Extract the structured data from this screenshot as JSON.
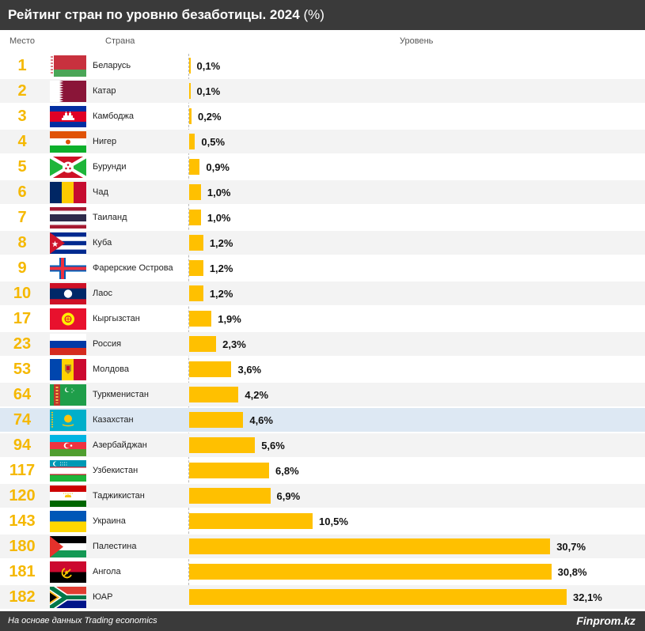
{
  "header": {
    "title": "Рейтинг стран по уровню безаботицы. 2024",
    "unit": "(%)"
  },
  "columns": {
    "place": "Место",
    "country": "Страна",
    "level": "Уровень"
  },
  "footer": {
    "source": "На основе данных Trading economics",
    "brand": "Finprom.kz"
  },
  "colors": {
    "bar": "#ffc000",
    "rank": "#f5b800",
    "header_bg": "#3a3a3a",
    "highlight_row": "#dde8f3"
  },
  "chart_data": {
    "type": "bar",
    "orientation": "horizontal",
    "title": "Рейтинг стран по уровню безаботицы. 2024 (%)",
    "xlabel": "Уровень",
    "xlim": [
      0,
      32.1
    ],
    "categories": [
      "Беларусь",
      "Катар",
      "Камбоджа",
      "Нигер",
      "Бурунди",
      "Чад",
      "Таиланд",
      "Куба",
      "Фарерские Острова",
      "Лаос",
      "Кыргызстан",
      "Россия",
      "Молдова",
      "Туркменистан",
      "Казахстан",
      "Азербайджан",
      "Узбекистан",
      "Таджикистан",
      "Украина",
      "Палестина",
      "Ангола",
      "ЮАР"
    ],
    "ranks": [
      "1",
      "2",
      "3",
      "4",
      "5",
      "6",
      "7",
      "8",
      "9",
      "10",
      "17",
      "23",
      "53",
      "64",
      "74",
      "94",
      "117",
      "120",
      "143",
      "180",
      "181",
      "182"
    ],
    "values": [
      0.1,
      0.1,
      0.2,
      0.5,
      0.9,
      1.0,
      1.0,
      1.2,
      1.2,
      1.2,
      1.9,
      2.3,
      3.6,
      4.2,
      4.6,
      5.6,
      6.8,
      6.9,
      10.5,
      30.7,
      30.8,
      32.1
    ],
    "labels": [
      "0,1%",
      "0,1%",
      "0,2%",
      "0,5%",
      "0,9%",
      "1,0%",
      "1,0%",
      "1,2%",
      "1,2%",
      "1,2%",
      "1,9%",
      "2,3%",
      "3,6%",
      "4,2%",
      "4,6%",
      "5,6%",
      "6,8%",
      "6,9%",
      "10,5%",
      "30,7%",
      "30,8%",
      "32,1%"
    ],
    "flags": [
      "belarus-flag",
      "qatar-flag",
      "cambodia-flag",
      "niger-flag",
      "burundi-flag",
      "chad-flag",
      "thailand-flag",
      "cuba-flag",
      "faroe-islands-flag",
      "laos-flag",
      "kyrgyzstan-flag",
      "russia-flag",
      "moldova-flag",
      "turkmenistan-flag",
      "kazakhstan-flag",
      "azerbaijan-flag",
      "uzbekistan-flag",
      "tajikistan-flag",
      "ukraine-flag",
      "palestine-flag",
      "angola-flag",
      "south-africa-flag"
    ],
    "highlight": "Казахстан"
  }
}
